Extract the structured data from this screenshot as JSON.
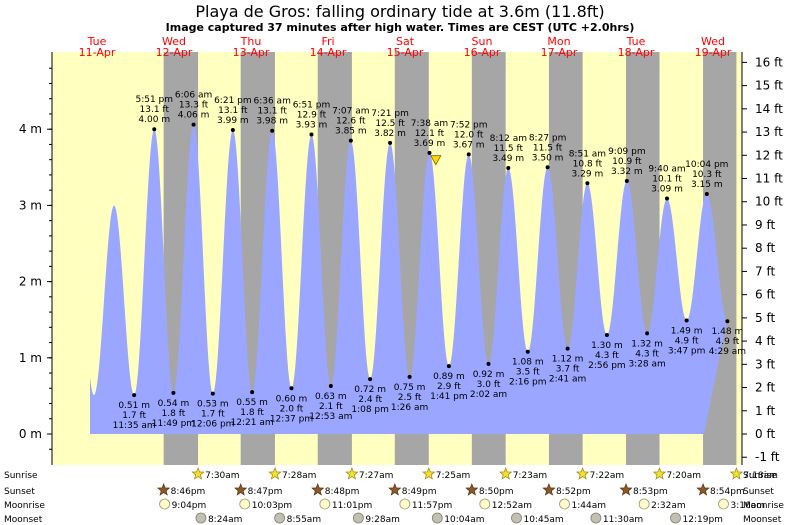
{
  "header": {
    "title": "Playa de Gros: falling  ordinary tide at 3.6m (11.8ft)",
    "subtitle": "Image captured 37 minutes after high water. Times are CEST (UTC +2.0hrs)"
  },
  "colors": {
    "day": "#ffffc0",
    "night": "#a6a6a6",
    "tide": "#9aa6ff",
    "day_label": "#ff0000"
  },
  "chart_data": {
    "type": "area",
    "days": [
      {
        "weekday": "Tue",
        "date": "11-Apr"
      },
      {
        "weekday": "Wed",
        "date": "12-Apr"
      },
      {
        "weekday": "Thu",
        "date": "13-Apr"
      },
      {
        "weekday": "Fri",
        "date": "14-Apr"
      },
      {
        "weekday": "Sat",
        "date": "15-Apr"
      },
      {
        "weekday": "Sun",
        "date": "16-Apr"
      },
      {
        "weekday": "Mon",
        "date": "17-Apr"
      },
      {
        "weekday": "Tue",
        "date": "18-Apr"
      },
      {
        "weekday": "Wed",
        "date": "19-Apr"
      }
    ],
    "y_left": {
      "unit": "m",
      "ticks": [
        "0 m",
        "1 m",
        "2 m",
        "3 m",
        "4 m"
      ],
      "range": [
        -0.35,
        4.95
      ]
    },
    "y_right": {
      "unit": "ft",
      "ticks": [
        "-1 ft",
        "0 ft",
        "1 ft",
        "2 ft",
        "3 ft",
        "4 ft",
        "5 ft",
        "6 ft",
        "7 ft",
        "8 ft",
        "9 ft",
        "10 ft",
        "11 ft",
        "12 ft",
        "13 ft",
        "14 ft",
        "15 ft",
        "16 ft"
      ]
    },
    "current": {
      "height_m": 3.6,
      "height_ft": 11.8,
      "day_offset": 4.4
    },
    "high_tides": [
      {
        "day": 0,
        "time": "5:51 pm",
        "ft": "13.1 ft",
        "m": "4.00 m",
        "h": 4.0
      },
      {
        "day": 1,
        "time": "6:06 am",
        "ft": "13.3 ft",
        "m": "4.06 m",
        "h": 4.06
      },
      {
        "day": 1,
        "time": "6:21 pm",
        "ft": "13.1 ft",
        "m": "3.99 m",
        "h": 3.99
      },
      {
        "day": 2,
        "time": "6:36 am",
        "ft": "13.1 ft",
        "m": "3.98 m",
        "h": 3.98
      },
      {
        "day": 2,
        "time": "6:51 pm",
        "ft": "12.9 ft",
        "m": "3.93 m",
        "h": 3.93
      },
      {
        "day": 3,
        "time": "7:07 am",
        "ft": "12.6 ft",
        "m": "3.85 m",
        "h": 3.85
      },
      {
        "day": 3,
        "time": "7:21 pm",
        "ft": "12.5 ft",
        "m": "3.82 m",
        "h": 3.82
      },
      {
        "day": 4,
        "time": "7:38 am",
        "ft": "12.1 ft",
        "m": "3.69 m",
        "h": 3.69
      },
      {
        "day": 4,
        "time": "7:52 pm",
        "ft": "12.0 ft",
        "m": "3.67 m",
        "h": 3.67
      },
      {
        "day": 5,
        "time": "8:12 am",
        "ft": "11.5 ft",
        "m": "3.49 m",
        "h": 3.49
      },
      {
        "day": 5,
        "time": "8:27 pm",
        "ft": "11.5 ft",
        "m": "3.50 m",
        "h": 3.5
      },
      {
        "day": 6,
        "time": "8:51 am",
        "ft": "10.8 ft",
        "m": "3.29 m",
        "h": 3.29
      },
      {
        "day": 6,
        "time": "9:09 pm",
        "ft": "10.9 ft",
        "m": "3.32 m",
        "h": 3.32
      },
      {
        "day": 7,
        "time": "9:40 am",
        "ft": "10.1 ft",
        "m": "3.09 m",
        "h": 3.09
      },
      {
        "day": 7,
        "time": "10:04 pm",
        "ft": "10.3 ft",
        "m": "3.15 m",
        "h": 3.15
      }
    ],
    "low_tides": [
      {
        "day": 0,
        "time": "11:35 am",
        "ft": "1.7 ft",
        "m": "0.51 m",
        "h": 0.51
      },
      {
        "day": 0,
        "time": "11:49 pm",
        "ft": "1.8 ft",
        "m": "0.54 m",
        "h": 0.54
      },
      {
        "day": 1,
        "time": "12:06 pm",
        "ft": "1.7 ft",
        "m": "0.53 m",
        "h": 0.53
      },
      {
        "day": 2,
        "time": "12:21 am",
        "ft": "1.8 ft",
        "m": "0.55 m",
        "h": 0.55
      },
      {
        "day": 2,
        "time": "12:37 pm",
        "ft": "2.0 ft",
        "m": "0.60 m",
        "h": 0.6
      },
      {
        "day": 3,
        "time": "12:53 am",
        "ft": "2.1 ft",
        "m": "0.63 m",
        "h": 0.63
      },
      {
        "day": 3,
        "time": "1:08 pm",
        "ft": "2.4 ft",
        "m": "0.72 m",
        "h": 0.72
      },
      {
        "day": 4,
        "time": "1:26 am",
        "ft": "2.5 ft",
        "m": "0.75 m",
        "h": 0.75
      },
      {
        "day": 4,
        "time": "1:41 pm",
        "ft": "2.9 ft",
        "m": "0.89 m",
        "h": 0.89
      },
      {
        "day": 5,
        "time": "2:02 am",
        "ft": "3.0 ft",
        "m": "0.92 m",
        "h": 0.92
      },
      {
        "day": 5,
        "time": "2:16 pm",
        "ft": "3.5 ft",
        "m": "1.08 m",
        "h": 1.08
      },
      {
        "day": 6,
        "time": "2:41 am",
        "ft": "3.7 ft",
        "m": "1.12 m",
        "h": 1.12
      },
      {
        "day": 6,
        "time": "2:56 pm",
        "ft": "4.3 ft",
        "m": "1.30 m",
        "h": 1.3
      },
      {
        "day": 7,
        "time": "3:28 am",
        "ft": "4.3 ft",
        "m": "1.32 m",
        "h": 1.32
      },
      {
        "day": 7,
        "time": "3:47 pm",
        "ft": "4.9 ft",
        "m": "1.49 m",
        "h": 1.49
      },
      {
        "day": 8,
        "time": "4:29 am",
        "ft": "4.9 ft",
        "m": "1.48 m",
        "h": 1.48
      }
    ],
    "bottom_rows": {
      "labels": [
        "Sunrise",
        "Sunset",
        "Moonrise",
        "Moonset"
      ],
      "sunrise": [
        {
          "day": 1,
          "time": "7:30am"
        },
        {
          "day": 2,
          "time": "7:28am"
        },
        {
          "day": 3,
          "time": "7:27am"
        },
        {
          "day": 4,
          "time": "7:25am"
        },
        {
          "day": 5,
          "time": "7:23am"
        },
        {
          "day": 6,
          "time": "7:22am"
        },
        {
          "day": 7,
          "time": "7:20am"
        },
        {
          "day": 8,
          "time": "7:18am"
        }
      ],
      "sunset": [
        {
          "day": 0,
          "time": "8:46pm"
        },
        {
          "day": 1,
          "time": "8:47pm"
        },
        {
          "day": 2,
          "time": "8:48pm"
        },
        {
          "day": 3,
          "time": "8:49pm"
        },
        {
          "day": 4,
          "time": "8:50pm"
        },
        {
          "day": 5,
          "time": "8:52pm"
        },
        {
          "day": 6,
          "time": "8:53pm"
        },
        {
          "day": 7,
          "time": "8:54pm"
        }
      ],
      "moonrise": [
        {
          "day": 0,
          "time": "9:04pm"
        },
        {
          "day": 1,
          "time": "10:03pm"
        },
        {
          "day": 2,
          "time": "11:01pm"
        },
        {
          "day": 3,
          "time": "11:57pm"
        },
        {
          "day": 5,
          "time": "12:52am"
        },
        {
          "day": 6,
          "time": "1:44am"
        },
        {
          "day": 7,
          "time": "2:32am"
        },
        {
          "day": 8,
          "time": "3:16am"
        }
      ],
      "moonset": [
        {
          "day": 1,
          "time": "8:24am"
        },
        {
          "day": 2,
          "time": "8:55am"
        },
        {
          "day": 3,
          "time": "9:28am"
        },
        {
          "day": 4,
          "time": "10:04am"
        },
        {
          "day": 5,
          "time": "10:45am"
        },
        {
          "day": 6,
          "time": "11:30am"
        },
        {
          "day": 7,
          "time": "12:19pm"
        }
      ]
    }
  }
}
